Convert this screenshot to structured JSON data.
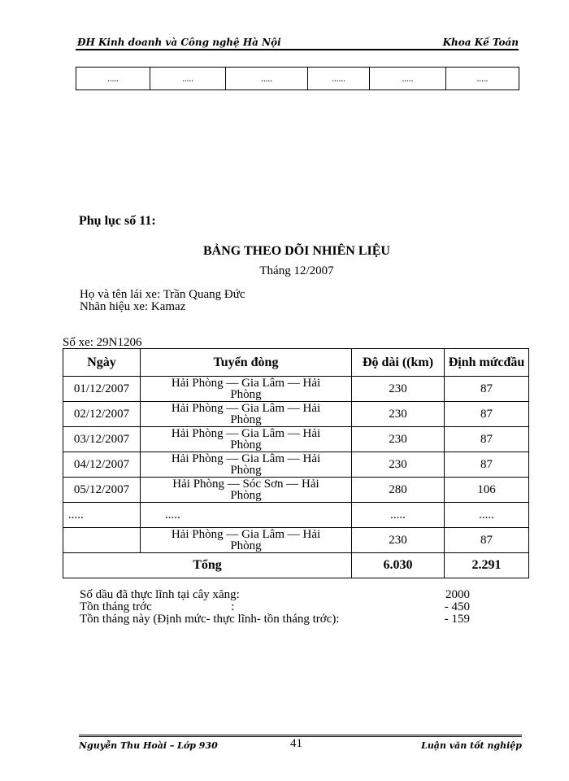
{
  "header": {
    "left": "ĐH Kinh doanh và Công nghệ Hà Nội",
    "right": "Khoa Kế Toán"
  },
  "top_table": {
    "cells": [
      ".....",
      ".....",
      ".....",
      "......",
      ".....",
      "....."
    ]
  },
  "appendix": "Phụ lục số 11:",
  "title": "BẢNG THEO DÕI NHIÊN LIỆU",
  "month": "Tháng 12/2007",
  "driver": "Họ và tên lái xe: Trần Quang Đức",
  "brand": "Nhãn hiệu xe: Kamaz",
  "plate": "Số xe: 29N1206",
  "table": {
    "headers": [
      "Ngày",
      "Tuyến đòng",
      "Độ dài ((km)",
      "Định mứcđầu"
    ],
    "rows": [
      [
        "01/12/2007",
        "Hải Phòng — Gia Lâm — Hải Phòng",
        "230",
        "87"
      ],
      [
        "02/12/2007",
        "Hải Phòng — Gia Lâm — Hải Phòng",
        "230",
        "87"
      ],
      [
        "03/12/2007",
        "Hải Phòng — Gia Lâm — Hải Phòng",
        "230",
        "87"
      ],
      [
        "04/12/2007",
        "Hải Phòng — Gia Lâm — Hải Phòng",
        "230",
        "87"
      ],
      [
        "05/12/2007",
        "Hải Phòng — Sóc Sơn — Hải Phòng",
        "280",
        "106"
      ],
      [
        ".....",
        ".....",
        ".....",
        "....."
      ],
      [
        "",
        "Hải Phòng — Gia Lâm — Hải Phòng",
        "230",
        "87"
      ]
    ],
    "total": {
      "label": "Tổng",
      "length": "6.030",
      "quota": "2.291"
    }
  },
  "summary": [
    {
      "label": "Số dầu đã thực lĩnh tại cây xăng:",
      "value": "2000"
    },
    {
      "label": "Tồn tháng trớc                          :",
      "value": "- 450"
    },
    {
      "label": "Tồn tháng này (Định mức- thực lĩnh- tồn tháng trớc):",
      "value": "- 159"
    }
  ],
  "footer": {
    "left": "Nguyễn Thu Hoài – Lớp 930",
    "page": "41",
    "right": "Luận văn tốt nghiệp"
  }
}
